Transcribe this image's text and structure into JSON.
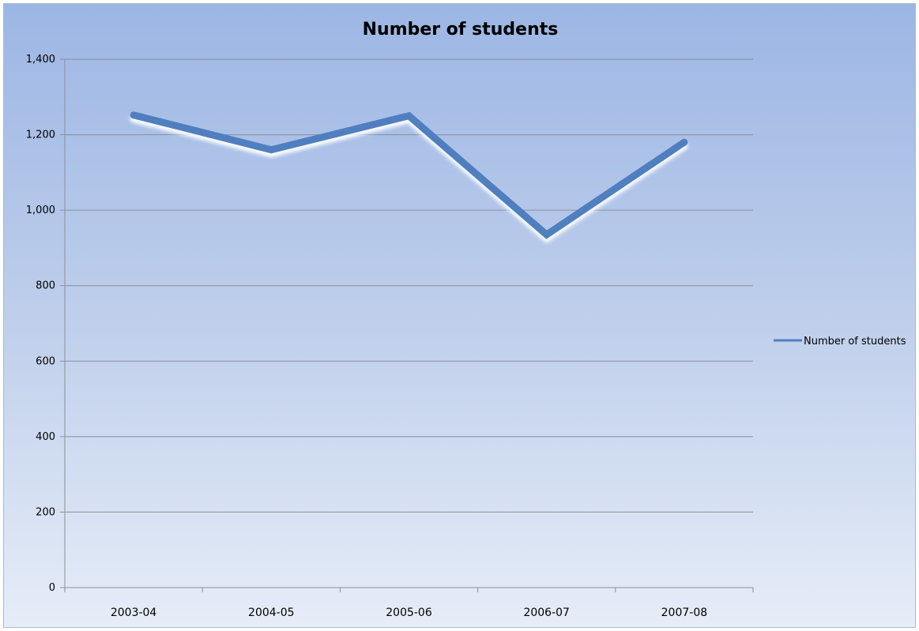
{
  "chart_data": {
    "type": "line",
    "title": "Number of students",
    "categories": [
      "2003-04",
      "2004-05",
      "2005-06",
      "2006-07",
      "2007-08"
    ],
    "series": [
      {
        "name": "Number of students",
        "values": [
          1252,
          1160,
          1250,
          935,
          1180
        ],
        "color": "#4f7fbf"
      }
    ],
    "yticks": [
      "0",
      "200",
      "400",
      "600",
      "800",
      "1,000",
      "1,200",
      "1,400"
    ],
    "ylim": [
      0,
      1400
    ],
    "grid": true,
    "legend": "right"
  }
}
